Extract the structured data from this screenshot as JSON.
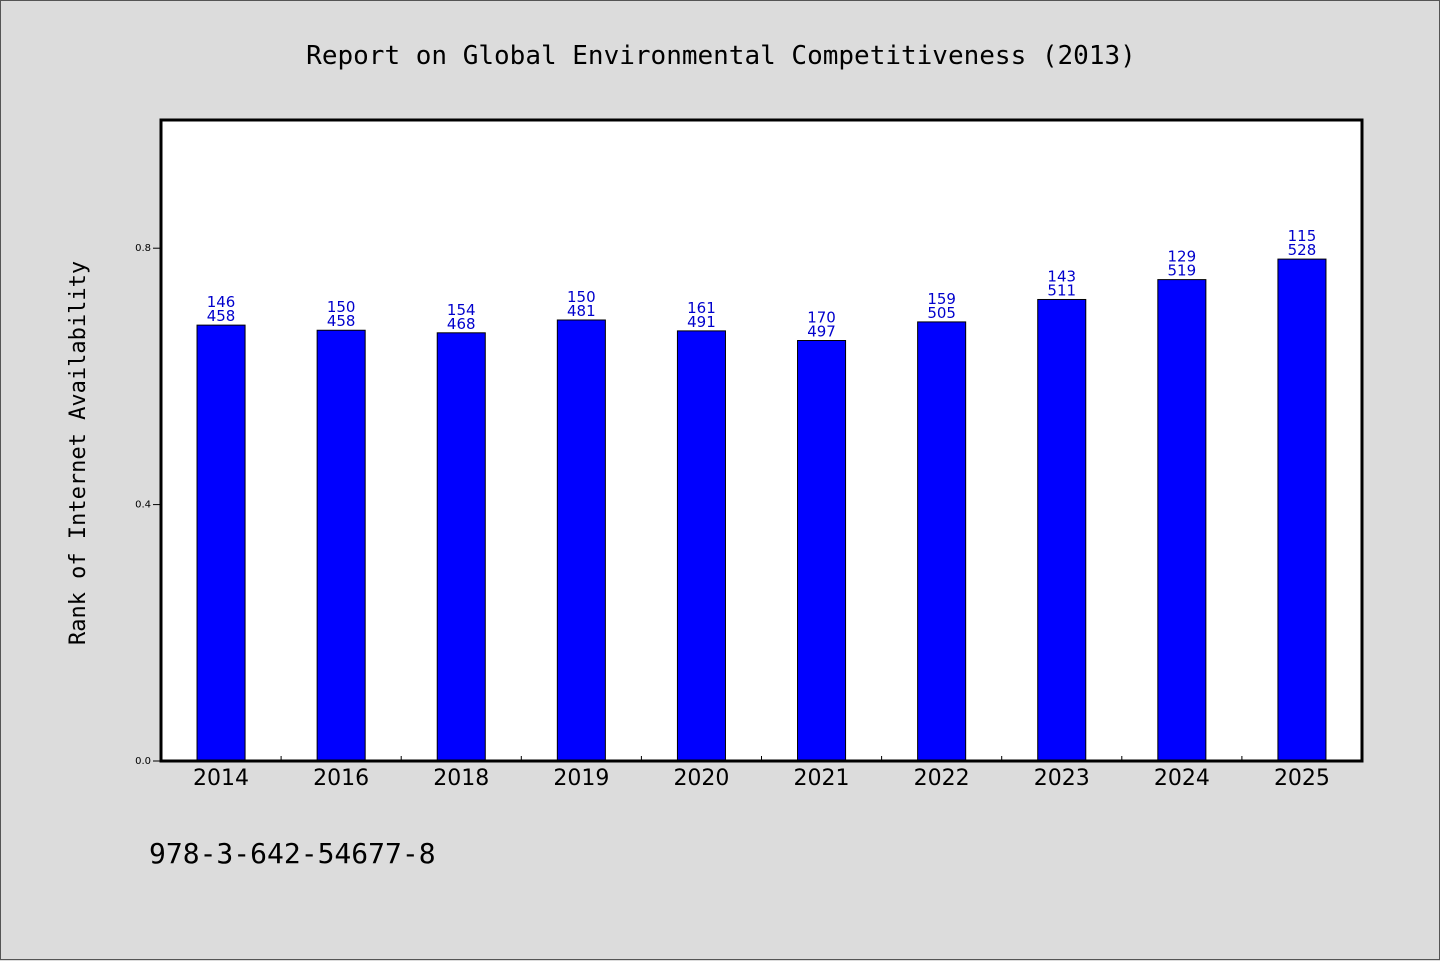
{
  "chart_data": {
    "type": "bar",
    "title": "Report on Global Environmental Competitiveness (2013)",
    "ylabel": "Rank of Internet Availability",
    "xlabel": "",
    "categories": [
      "2014",
      "2016",
      "2018",
      "2019",
      "2020",
      "2021",
      "2022",
      "2023",
      "2024",
      "2025"
    ],
    "values": [
      0.68,
      0.672,
      0.668,
      0.688,
      0.671,
      0.656,
      0.685,
      0.72,
      0.751,
      0.783
    ],
    "labels_top": [
      "146",
      "150",
      "154",
      "150",
      "161",
      "170",
      "159",
      "143",
      "129",
      "115"
    ],
    "labels_bottom": [
      "458",
      "458",
      "468",
      "481",
      "491",
      "497",
      "505",
      "511",
      "519",
      "528"
    ],
    "ylim": [
      0,
      1.0
    ],
    "yticks": [
      0.0,
      0.4,
      0.8
    ],
    "ytick_labels": [
      "0.0",
      "0.4",
      "0.8"
    ],
    "grid": false,
    "bar_color": "#0000ff",
    "label_color": "#0000cc"
  },
  "footer": {
    "isbn": "978-3-642-54677-8"
  },
  "colors": {
    "background": "#dcdcdc",
    "plot_background": "#ffffff"
  }
}
